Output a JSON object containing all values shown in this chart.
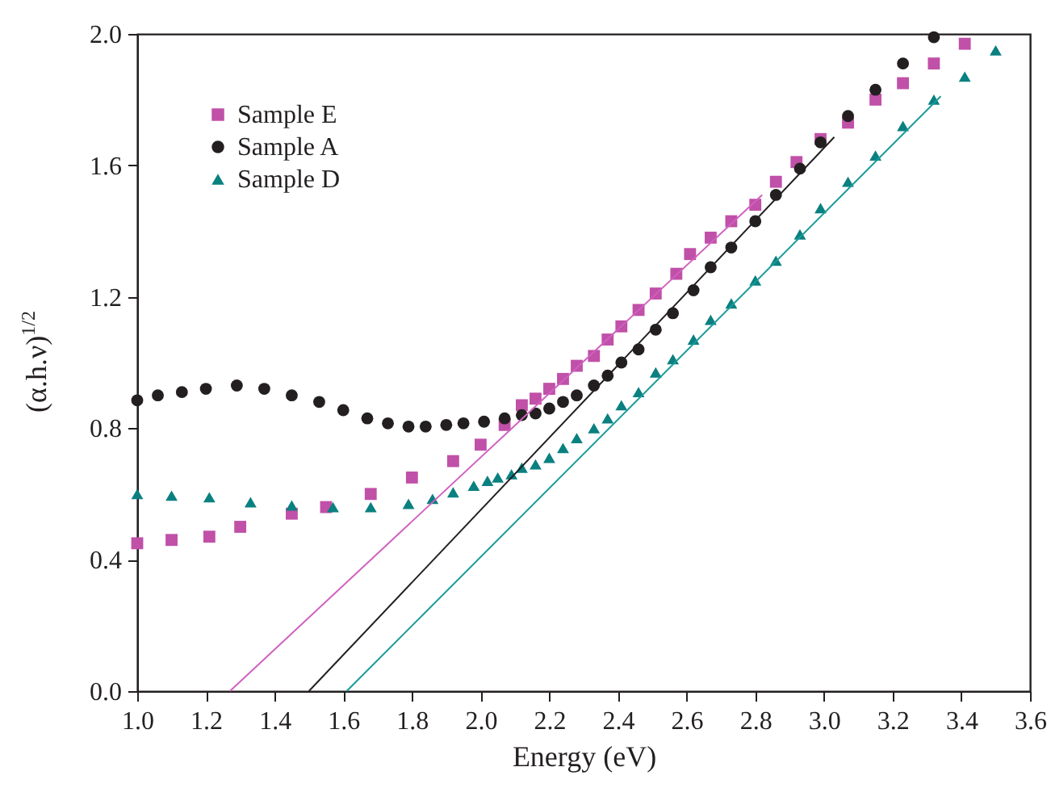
{
  "chart_data": {
    "type": "scatter",
    "xlabel": "Energy (eV)",
    "ylabel": "(α.h.ν)$^{1/2}$",
    "xlim": [
      1.0,
      3.6
    ],
    "ylim": [
      0.0,
      2.0
    ],
    "xticks": [
      {
        "value": 1.0,
        "label": "1.0"
      },
      1.2,
      1.4,
      1.6,
      1.8,
      {
        "value": 2.0,
        "label": "2.0"
      },
      2.2,
      2.4,
      2.6,
      2.8,
      {
        "value": 3.0,
        "label": "3.0"
      },
      3.2,
      3.4,
      3.6
    ],
    "yticks": [
      {
        "value": 0.0,
        "label": "0.0"
      },
      0.4,
      0.8,
      1.2,
      1.6,
      {
        "value": 2.0,
        "label": "2.0"
      }
    ],
    "grid": false,
    "legend": "top left",
    "series": [
      {
        "name": "Sample E",
        "color": "#c050a8",
        "marker": "square",
        "x": [
          1.0,
          1.1,
          1.21,
          1.3,
          1.45,
          1.55,
          1.68,
          1.8,
          1.92,
          2.0,
          2.07,
          2.12,
          2.16,
          2.2,
          2.24,
          2.28,
          2.33,
          2.37,
          2.41,
          2.46,
          2.51,
          2.57,
          2.61,
          2.67,
          2.73,
          2.8,
          2.86,
          2.92,
          2.99,
          3.07,
          3.15,
          3.23,
          3.32,
          3.41
        ],
        "values": [
          0.45,
          0.46,
          0.47,
          0.5,
          0.54,
          0.56,
          0.6,
          0.65,
          0.7,
          0.75,
          0.81,
          0.87,
          0.89,
          0.92,
          0.95,
          0.99,
          1.02,
          1.07,
          1.11,
          1.16,
          1.21,
          1.27,
          1.33,
          1.38,
          1.43,
          1.48,
          1.55,
          1.61,
          1.68,
          1.73,
          1.8,
          1.85,
          1.91,
          1.97
        ]
      },
      {
        "name": "Sample A",
        "color": "#231f20",
        "marker": "circle",
        "x": [
          1.0,
          1.06,
          1.13,
          1.2,
          1.29,
          1.37,
          1.45,
          1.53,
          1.6,
          1.67,
          1.73,
          1.79,
          1.84,
          1.9,
          1.95,
          2.01,
          2.07,
          2.12,
          2.16,
          2.2,
          2.24,
          2.28,
          2.33,
          2.37,
          2.41,
          2.46,
          2.51,
          2.56,
          2.62,
          2.67,
          2.73,
          2.8,
          2.86,
          2.93,
          2.99,
          3.07,
          3.15,
          3.23,
          3.32
        ],
        "values": [
          0.885,
          0.9,
          0.91,
          0.92,
          0.93,
          0.92,
          0.9,
          0.88,
          0.855,
          0.83,
          0.815,
          0.805,
          0.805,
          0.81,
          0.815,
          0.82,
          0.83,
          0.84,
          0.845,
          0.86,
          0.88,
          0.9,
          0.93,
          0.96,
          1.0,
          1.04,
          1.1,
          1.15,
          1.22,
          1.29,
          1.35,
          1.43,
          1.51,
          1.59,
          1.67,
          1.75,
          1.83,
          1.91,
          1.99
        ]
      },
      {
        "name": "Sample D",
        "color": "#0a8080",
        "marker": "triangle",
        "x": [
          1.0,
          1.1,
          1.21,
          1.33,
          1.45,
          1.57,
          1.68,
          1.79,
          1.86,
          1.92,
          1.98,
          2.02,
          2.05,
          2.09,
          2.12,
          2.16,
          2.2,
          2.24,
          2.28,
          2.33,
          2.37,
          2.41,
          2.46,
          2.51,
          2.56,
          2.62,
          2.67,
          2.73,
          2.8,
          2.86,
          2.93,
          2.99,
          3.07,
          3.15,
          3.23,
          3.32,
          3.41,
          3.5
        ],
        "values": [
          0.6,
          0.595,
          0.59,
          0.575,
          0.565,
          0.56,
          0.56,
          0.57,
          0.585,
          0.605,
          0.625,
          0.64,
          0.65,
          0.66,
          0.68,
          0.69,
          0.71,
          0.74,
          0.77,
          0.8,
          0.83,
          0.87,
          0.91,
          0.97,
          1.01,
          1.07,
          1.13,
          1.18,
          1.25,
          1.31,
          1.39,
          1.47,
          1.55,
          1.63,
          1.72,
          1.8,
          1.87,
          1.95
        ]
      },
      {
        "type": "line",
        "color": "#d060c0",
        "x": [
          1.27,
          2.82
        ],
        "values": [
          0.0,
          1.51
        ]
      },
      {
        "type": "line",
        "color": "#231f20",
        "x": [
          1.5,
          3.03
        ],
        "values": [
          0.0,
          1.686
        ]
      },
      {
        "type": "line",
        "color": "#1a9a9a",
        "x": [
          1.61,
          3.34
        ],
        "values": [
          0.0,
          1.81
        ]
      }
    ]
  }
}
